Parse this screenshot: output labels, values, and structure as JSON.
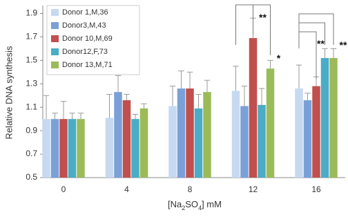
{
  "chart_data": {
    "type": "bar",
    "y_label": "Relative DNA synthesis",
    "x_label": [
      "[Na",
      "2",
      "SO",
      "4",
      "] mM"
    ],
    "categories": [
      "0",
      "4",
      "8",
      "12",
      "16"
    ],
    "series": [
      {
        "name": "Donor 1,M,36",
        "color": "#c6d9f1",
        "values": [
          1.0,
          1.01,
          1.11,
          1.24,
          1.26
        ],
        "errors": [
          0.2,
          0.2,
          0.17,
          0.21,
          0.2
        ]
      },
      {
        "name": "Donor3,M,43",
        "color": "#7ba0d8",
        "values": [
          1.0,
          1.23,
          1.26,
          1.11,
          1.16
        ],
        "errors": [
          0.05,
          0.14,
          0.15,
          0.17,
          0.06
        ]
      },
      {
        "name": "Donor 10,M,69",
        "color": "#c0504d",
        "values": [
          1.0,
          1.16,
          1.26,
          1.69,
          1.28
        ],
        "errors": [
          0.15,
          0.05,
          0.14,
          0.17,
          0.08
        ]
      },
      {
        "name": "Donor12,F,73",
        "color": "#4bacc6",
        "values": [
          1.0,
          1.0,
          1.09,
          1.12,
          1.52
        ],
        "errors": [
          0.05,
          0.04,
          0.12,
          0.14,
          0.08
        ]
      },
      {
        "name": "Donor 13,M,71",
        "color": "#9bbb59",
        "values": [
          1.0,
          1.09,
          1.23,
          1.43,
          1.52
        ],
        "errors": [
          0.05,
          0.04,
          0.1,
          0.07,
          0.08
        ]
      }
    ],
    "annotations": [
      "**",
      "*",
      "**",
      "**"
    ],
    "ylim": [
      0.5,
      1.95
    ],
    "yticks": [
      0.5,
      0.7,
      0.9,
      1.1,
      1.3,
      1.5,
      1.7,
      1.9
    ],
    "grid": false
  }
}
